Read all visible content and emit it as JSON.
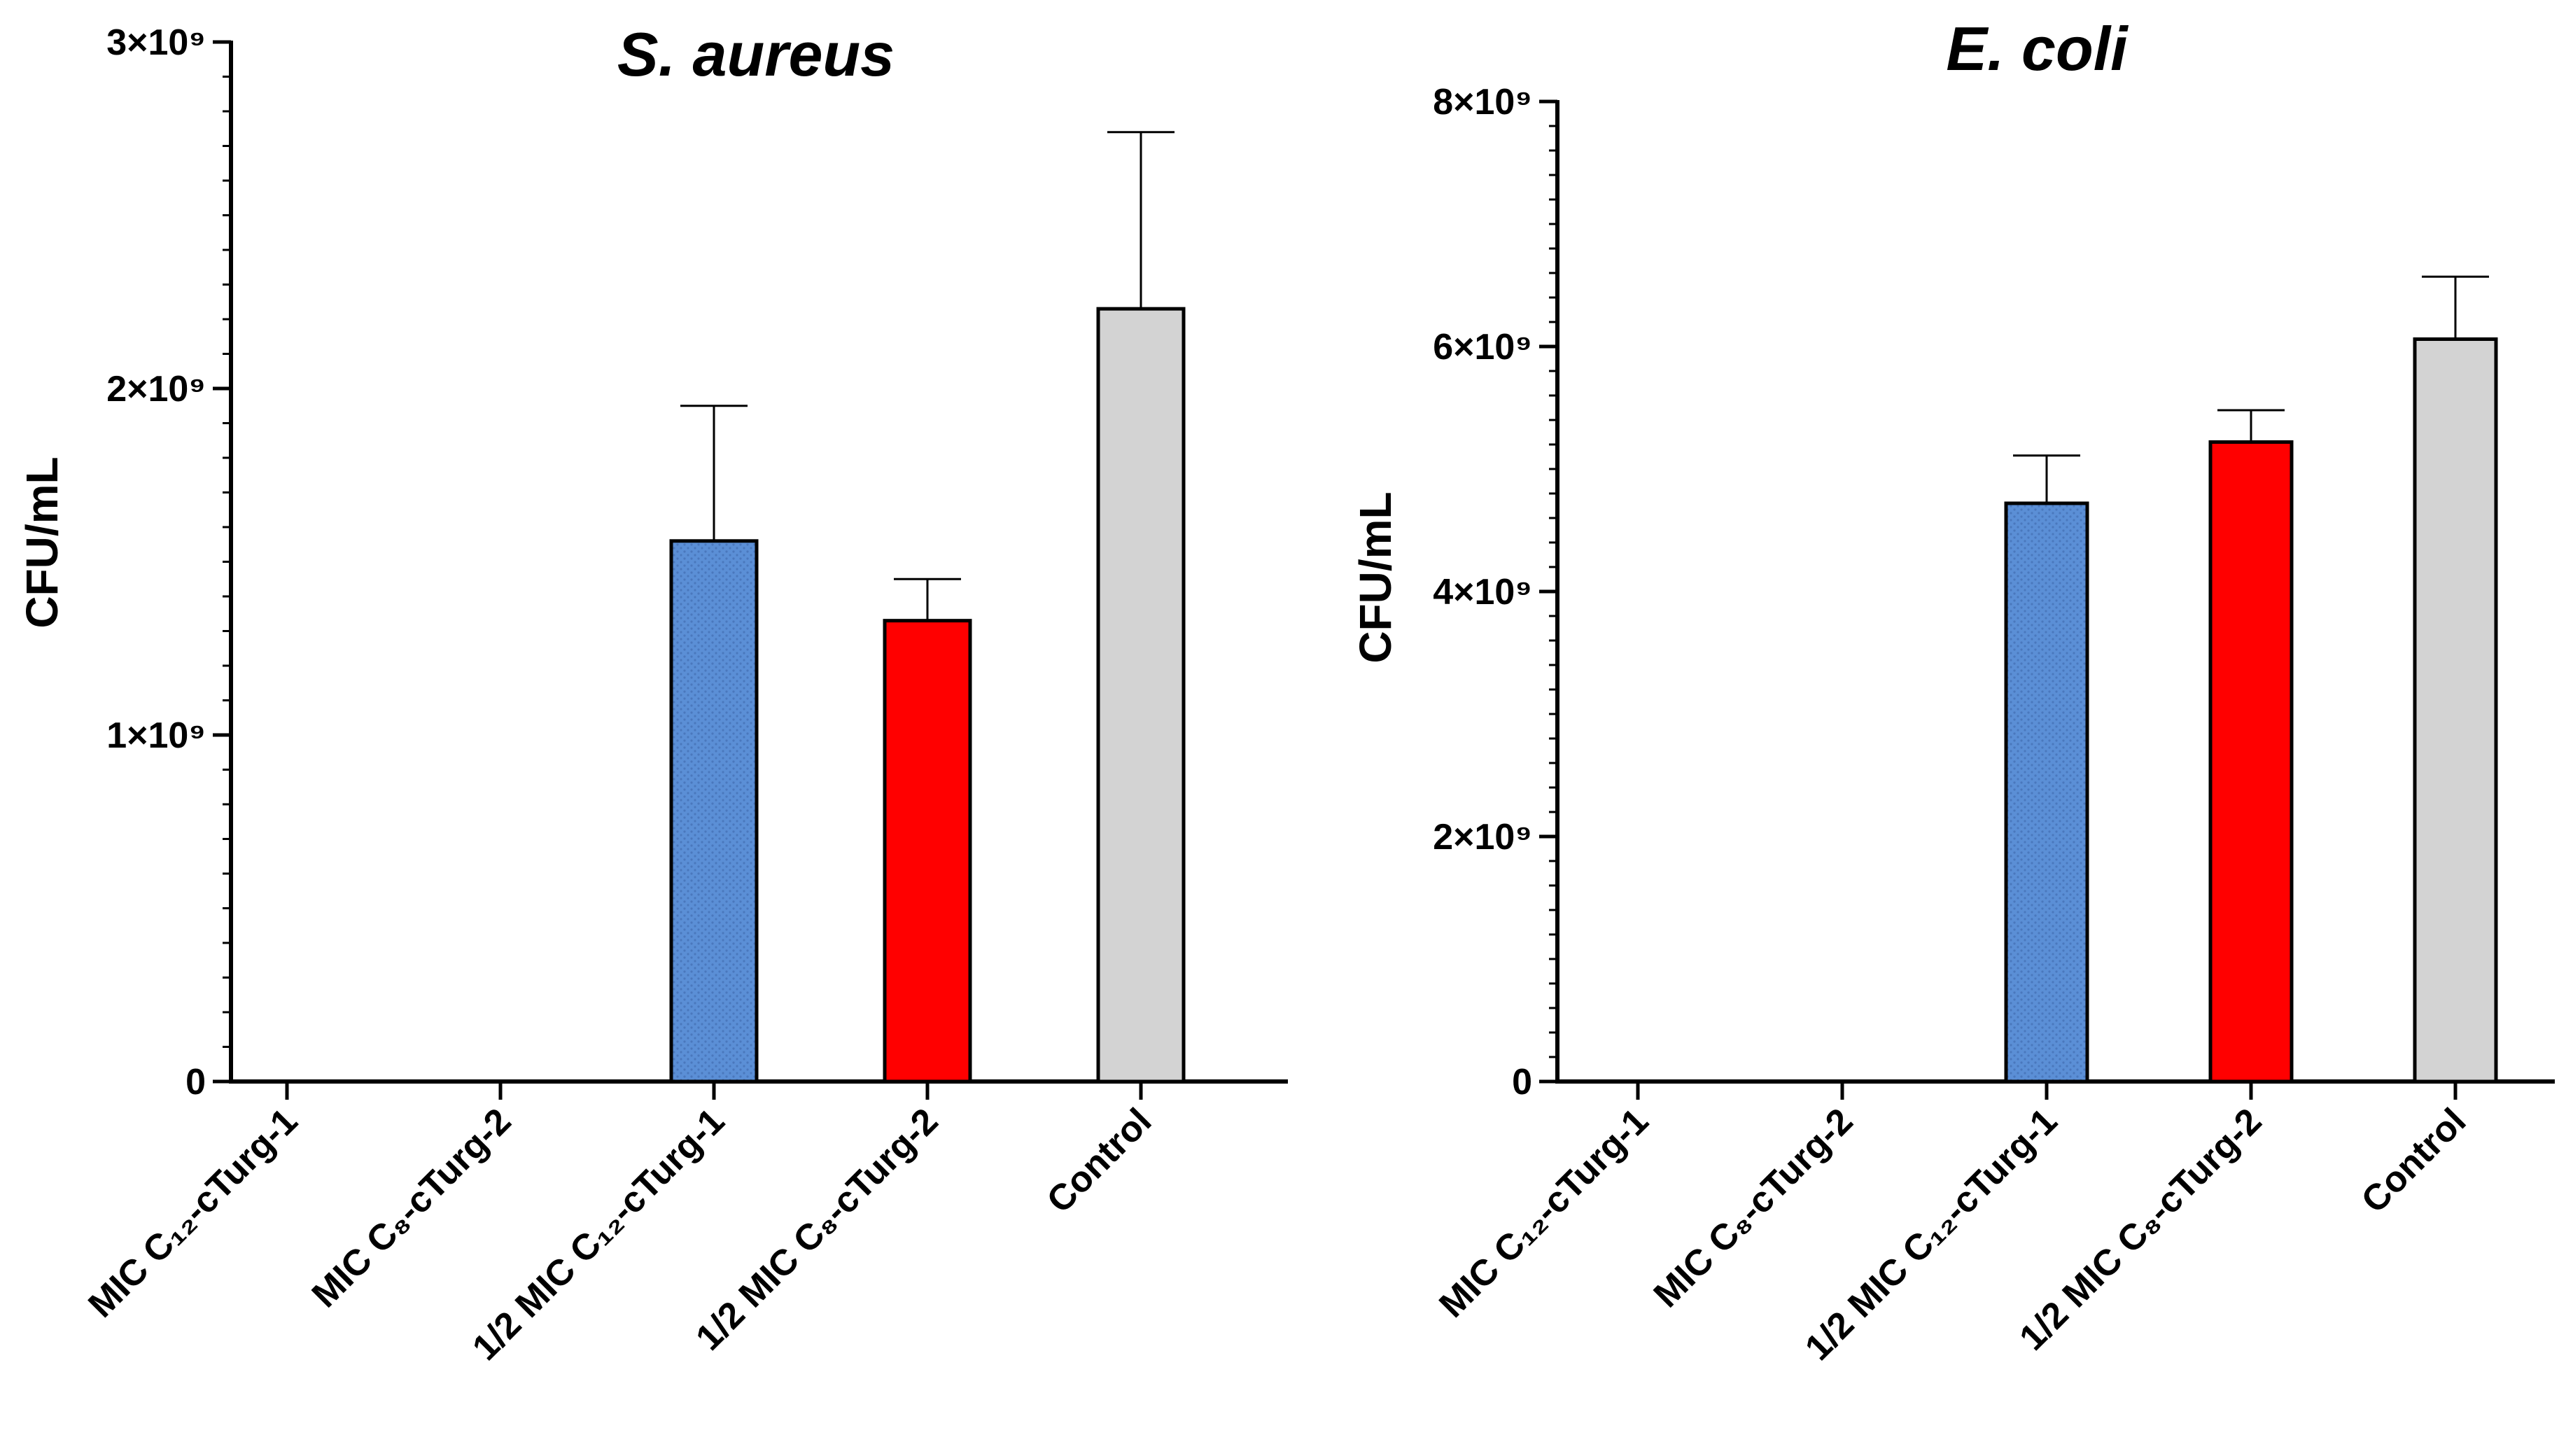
{
  "chart_data": [
    {
      "type": "bar",
      "title": "S. aureus",
      "ylabel": "CFU/mL",
      "xlabel": "",
      "ylim": [
        0,
        3000000000
      ],
      "yticks": [
        {
          "value": 0,
          "label": "0"
        },
        {
          "value": 1000000000,
          "label": "1×10⁹"
        },
        {
          "value": 2000000000,
          "label": "2×10⁹"
        },
        {
          "value": 3000000000,
          "label": "3×10⁹"
        }
      ],
      "categories": [
        "MIC C₁₂-cTurg-1",
        "MIC C₈-cTurg-2",
        "1/2 MIC C₁₂-cTurg-1",
        "1/2 MIC C₈-cTurg-2",
        "Control"
      ],
      "values": [
        0,
        0,
        1560000000,
        1330000000,
        2230000000
      ],
      "errors": [
        0,
        0,
        390000000,
        120000000,
        510000000
      ],
      "colors": [
        "#ffffff",
        "#ffffff",
        "#5b8fd6",
        "#ff0000",
        "#d3d3d3"
      ]
    },
    {
      "type": "bar",
      "title": "E. coli",
      "ylabel": "CFU/mL",
      "xlabel": "",
      "ylim": [
        0,
        8000000000
      ],
      "yticks": [
        {
          "value": 0,
          "label": "0"
        },
        {
          "value": 2000000000,
          "label": "2×10⁹"
        },
        {
          "value": 4000000000,
          "label": "4×10⁹"
        },
        {
          "value": 6000000000,
          "label": "6×10⁹"
        },
        {
          "value": 8000000000,
          "label": "8×10⁹"
        }
      ],
      "categories": [
        "MIC C₁₂-cTurg-1",
        "MIC C₈-cTurg-2",
        "1/2 MIC C₁₂-cTurg-1",
        "1/2 MIC C₈-cTurg-2",
        "Control"
      ],
      "values": [
        0,
        0,
        4720000000,
        5220000000,
        6060000000
      ],
      "errors": [
        0,
        0,
        390000000,
        260000000,
        510000000
      ],
      "colors": [
        "#ffffff",
        "#ffffff",
        "#5b8fd6",
        "#ff0000",
        "#d3d3d3"
      ]
    }
  ]
}
